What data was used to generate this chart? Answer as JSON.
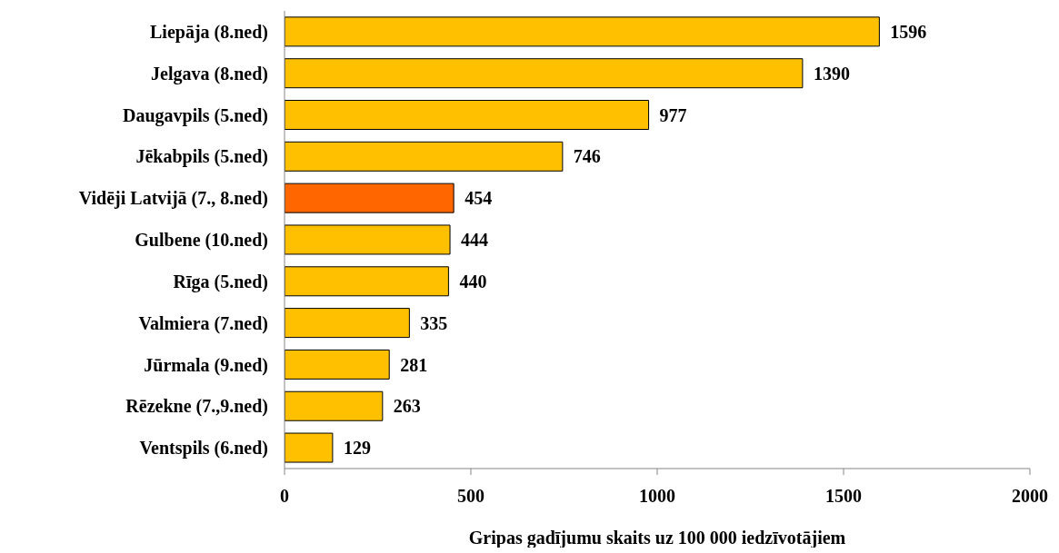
{
  "chart_data": {
    "type": "bar",
    "orientation": "horizontal",
    "xlabel": "Gripas gadījumu skaits uz 100 000 iedzīvotājiem",
    "categories": [
      "Liepāja (8.ned)",
      "Jelgava (8.ned)",
      "Daugavpils (5.ned)",
      "Jēkabpils (5.ned)",
      "Vidēji Latvijā (7., 8.ned)",
      "Gulbene (10.ned)",
      "Rīga (5.ned)",
      "Valmiera (7.ned)",
      "Jūrmala (9.ned)",
      "Rēzekne (7.,9.ned)",
      "Ventspils (6.ned)"
    ],
    "values": [
      1596,
      1390,
      977,
      746,
      454,
      444,
      440,
      335,
      281,
      263,
      129
    ],
    "colors": [
      "#ffc000",
      "#ffc000",
      "#ffc000",
      "#ffc000",
      "#ff6600",
      "#ffc000",
      "#ffc000",
      "#ffc000",
      "#ffc000",
      "#ffc000",
      "#ffc000"
    ],
    "xlim": [
      0,
      2000
    ],
    "xticks": [
      0,
      500,
      1000,
      1500,
      2000
    ],
    "data_labels": true
  }
}
